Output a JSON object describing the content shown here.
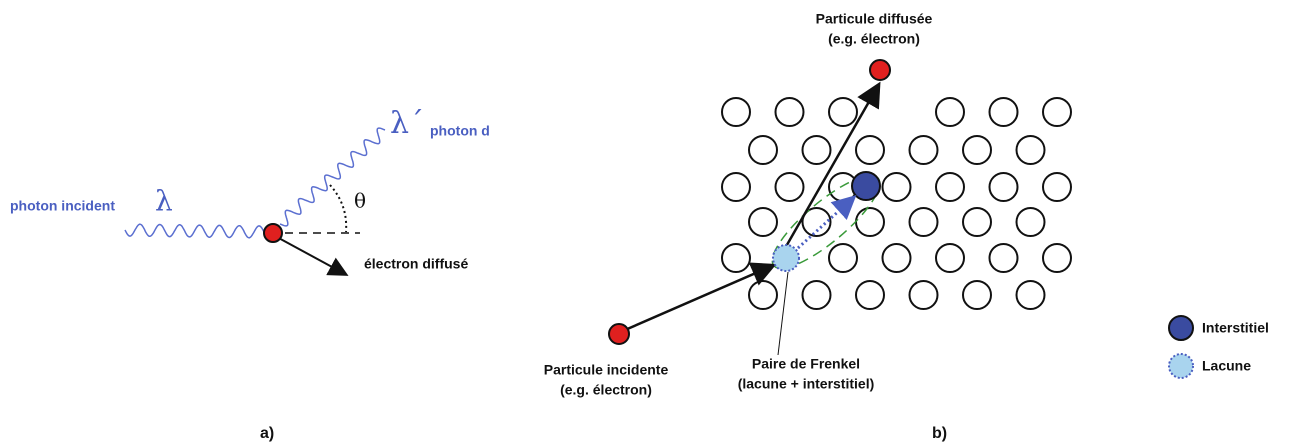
{
  "panel_a": {
    "incident_label": "photon incident",
    "lambda": "λ",
    "lambda_prime": "λ´",
    "scattered_label": "photon d",
    "theta": "θ",
    "electron_label": "électron diffusé",
    "caption": "a)"
  },
  "panel_b": {
    "scattered_title": "Particule diffusée",
    "scattered_note": "(e.g. électron)",
    "incident_title": "Particule incidente",
    "incident_note": "(e.g. électron)",
    "frenkel_title": "Paire de Frenkel",
    "frenkel_note": "(lacune + interstitiel)",
    "caption": "b)"
  },
  "legend": {
    "items": [
      "Interstitiel",
      "Lacune"
    ]
  }
}
